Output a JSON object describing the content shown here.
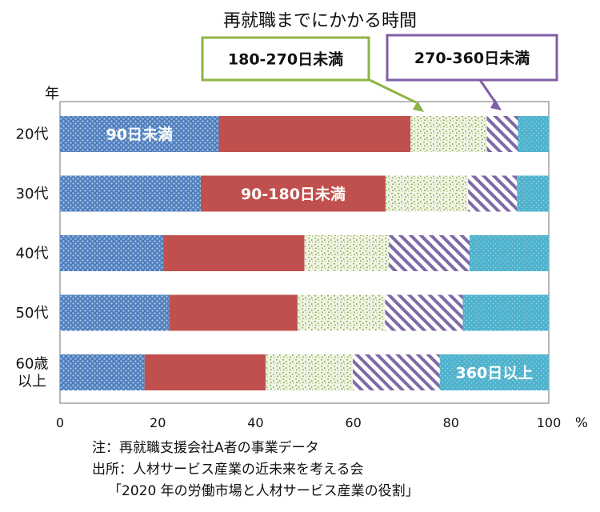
{
  "chart_data": {
    "type": "bar",
    "orientation": "horizontal",
    "stacked": true,
    "title": "再就職までにかかる時間",
    "ylabel": "年",
    "xunit": "%",
    "xlim": [
      0,
      100
    ],
    "xticks": [
      0,
      20,
      40,
      60,
      80,
      100
    ],
    "categories": [
      [
        "20代"
      ],
      [
        "30代"
      ],
      [
        "40代"
      ],
      [
        "50代"
      ],
      [
        "60歳",
        "以上"
      ]
    ],
    "series": [
      {
        "name": "90日未満",
        "values": [
          32.5,
          28.8,
          21.2,
          22.3,
          17.3
        ]
      },
      {
        "name": "90-180日未満",
        "values": [
          39.2,
          37.8,
          28.8,
          26.3,
          24.8
        ]
      },
      {
        "name": "180-270日未満",
        "values": [
          15.6,
          16.9,
          17.3,
          17.9,
          17.8
        ]
      },
      {
        "name": "270-360日未満",
        "values": [
          6.4,
          10.0,
          16.5,
          15.9,
          17.8
        ]
      },
      {
        "name": "360日以上",
        "values": [
          6.3,
          6.5,
          16.2,
          17.6,
          22.3
        ]
      }
    ],
    "inline_labels": [
      {
        "series": 0,
        "category": 0,
        "text": "90日未満"
      },
      {
        "series": 1,
        "category": 1,
        "text": "90-180日未満"
      },
      {
        "series": 4,
        "category": 4,
        "text": "360日以上"
      }
    ],
    "callouts": [
      {
        "series": 2,
        "text": "180-270日未満",
        "color": "#8db446"
      },
      {
        "series": 3,
        "text": "270-360日未満",
        "color": "#7f5fa6"
      }
    ],
    "colors": [
      "#4f7fbe",
      "#c0504d",
      "#f2f4e6",
      "#ffffff",
      "#4fb2cc"
    ]
  },
  "notes": {
    "line1": "注：再就職支援会社A者の事業データ",
    "line2": "出所：人材サービス産業の近未来を考える会",
    "line3": "「2020 年の労働市場と人材サービス産業の役割」"
  }
}
